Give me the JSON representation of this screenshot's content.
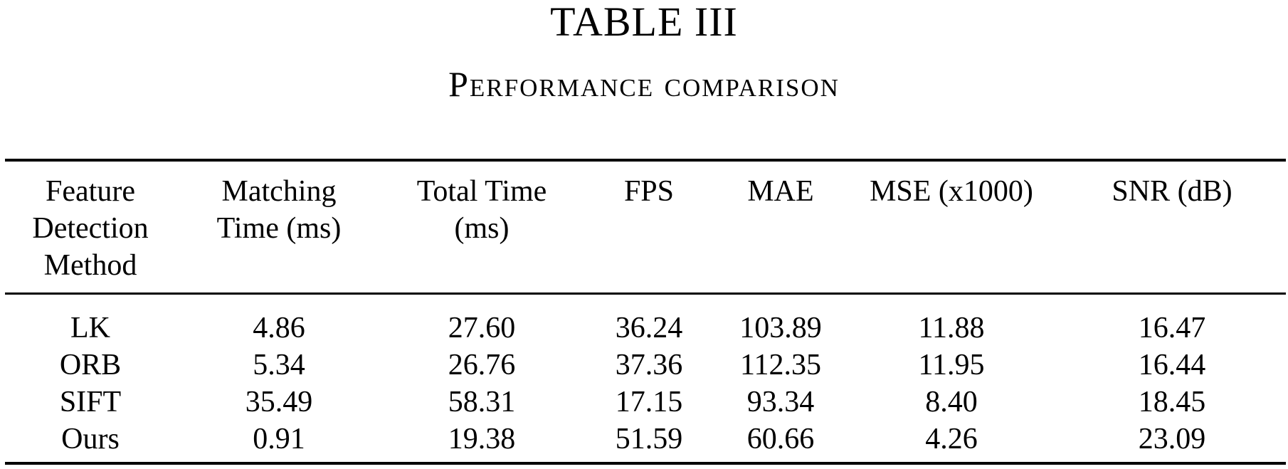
{
  "table": {
    "label": "TABLE III",
    "caption": "Performance comparison",
    "headers": [
      [
        "Feature",
        "Detection",
        "Method"
      ],
      [
        "Matching",
        "Time (ms)"
      ],
      [
        "Total Time",
        "(ms)"
      ],
      [
        "FPS"
      ],
      [
        "MAE"
      ],
      [
        "MSE (x1000)"
      ],
      [
        "SNR (dB)"
      ]
    ],
    "rows": [
      [
        "LK",
        "4.86",
        "27.60",
        "36.24",
        "103.89",
        "11.88",
        "16.47"
      ],
      [
        "ORB",
        "5.34",
        "26.76",
        "37.36",
        "112.35",
        "11.95",
        "16.44"
      ],
      [
        "SIFT",
        "35.49",
        "58.31",
        "17.15",
        "93.34",
        "8.40",
        "18.45"
      ],
      [
        "Ours",
        "0.91",
        "19.38",
        "51.59",
        "60.66",
        "4.26",
        "23.09"
      ]
    ],
    "bold_row": "Ours"
  }
}
